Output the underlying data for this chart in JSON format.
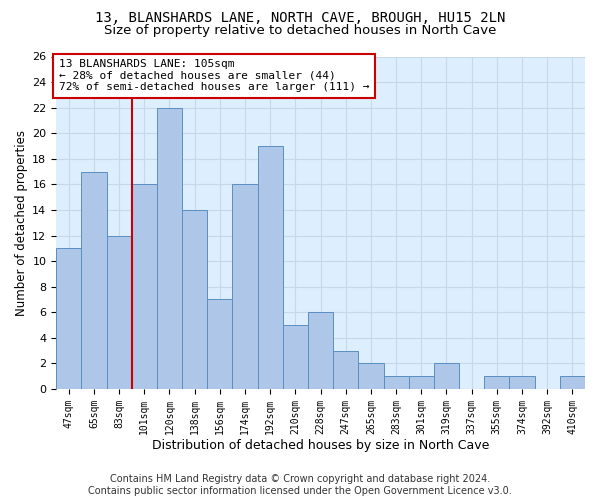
{
  "title": "13, BLANSHARDS LANE, NORTH CAVE, BROUGH, HU15 2LN",
  "subtitle": "Size of property relative to detached houses in North Cave",
  "xlabel": "Distribution of detached houses by size in North Cave",
  "ylabel": "Number of detached properties",
  "footer_line1": "Contains HM Land Registry data © Crown copyright and database right 2024.",
  "footer_line2": "Contains public sector information licensed under the Open Government Licence v3.0.",
  "categories": [
    "47sqm",
    "65sqm",
    "83sqm",
    "101sqm",
    "120sqm",
    "138sqm",
    "156sqm",
    "174sqm",
    "192sqm",
    "210sqm",
    "228sqm",
    "247sqm",
    "265sqm",
    "283sqm",
    "301sqm",
    "319sqm",
    "337sqm",
    "355sqm",
    "374sqm",
    "392sqm",
    "410sqm"
  ],
  "values": [
    11,
    17,
    12,
    16,
    22,
    14,
    7,
    16,
    19,
    5,
    6,
    3,
    2,
    1,
    1,
    2,
    0,
    1,
    1,
    0,
    1
  ],
  "bar_color": "#aec6e8",
  "bar_edge_color": "#5a8fc2",
  "grid_color": "#c8d8ea",
  "background_color": "#ddeeff",
  "vline_x_index": 3,
  "vline_color": "#cc0000",
  "annotation_text": "13 BLANSHARDS LANE: 105sqm\n← 28% of detached houses are smaller (44)\n72% of semi-detached houses are larger (111) →",
  "annotation_box_facecolor": "#ffffff",
  "annotation_box_edgecolor": "#cc0000",
  "ylim_max": 26,
  "yticks": [
    0,
    2,
    4,
    6,
    8,
    10,
    12,
    14,
    16,
    18,
    20,
    22,
    24,
    26
  ],
  "title_fontsize": 10,
  "subtitle_fontsize": 9.5,
  "annotation_fontsize": 8,
  "tick_fontsize": 7,
  "ytick_fontsize": 8,
  "xlabel_fontsize": 9,
  "ylabel_fontsize": 8.5,
  "footer_fontsize": 7
}
